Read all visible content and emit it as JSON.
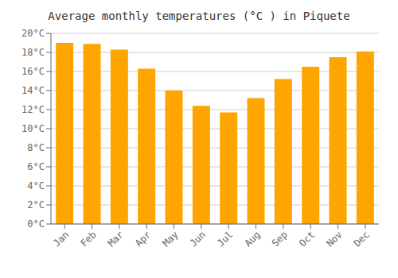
{
  "chart_data": {
    "type": "bar",
    "title": "Average monthly temperatures (°C ) in Piquete",
    "categories": [
      "Jan",
      "Feb",
      "Mar",
      "Apr",
      "May",
      "Jun",
      "Jul",
      "Aug",
      "Sep",
      "Oct",
      "Nov",
      "Dec"
    ],
    "values": [
      19.0,
      18.9,
      18.3,
      16.3,
      14.0,
      12.4,
      11.7,
      13.2,
      15.2,
      16.5,
      17.5,
      18.1
    ],
    "color": "#FFA500",
    "ylim": [
      0,
      20
    ],
    "yticks": [
      {
        "value": 0,
        "label": "0°C"
      },
      {
        "value": 2,
        "label": "2°C"
      },
      {
        "value": 4,
        "label": "4°C"
      },
      {
        "value": 6,
        "label": "6°C"
      },
      {
        "value": 8,
        "label": "8°C"
      },
      {
        "value": 10,
        "label": "10°C"
      },
      {
        "value": 12,
        "label": "12°C"
      },
      {
        "value": 14,
        "label": "14°C"
      },
      {
        "value": 16,
        "label": "16°C"
      },
      {
        "value": 18,
        "label": "18°C"
      },
      {
        "value": 20,
        "label": "20°C"
      }
    ],
    "grid": true
  }
}
